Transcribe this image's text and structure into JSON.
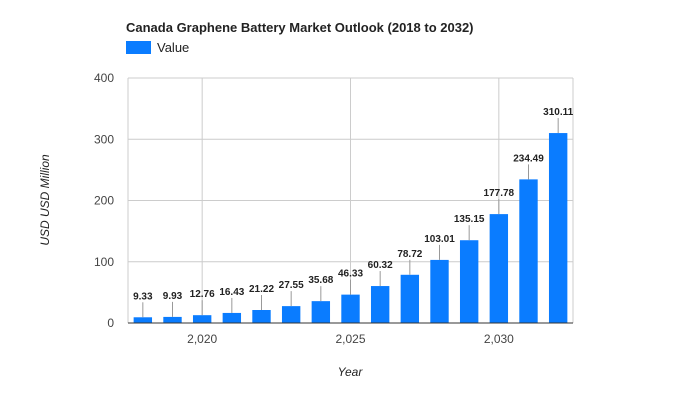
{
  "chart_data": {
    "type": "bar",
    "title": "Canada Graphene Battery Market Outlook (2018 to 2032)",
    "xlabel": "Year",
    "ylabel": "USD USD Million",
    "x": [
      2018,
      2019,
      2020,
      2021,
      2022,
      2023,
      2024,
      2025,
      2026,
      2027,
      2028,
      2029,
      2030,
      2031,
      2032
    ],
    "x_tick_values": [
      2020,
      2025,
      2030
    ],
    "x_tick_labels": [
      "2,020",
      "2,025",
      "2,030"
    ],
    "ylim": [
      0,
      400
    ],
    "y_ticks": [
      0,
      100,
      200,
      300,
      400
    ],
    "grid": true,
    "legend": {
      "position": "top-left",
      "entries": [
        "Value"
      ]
    },
    "series": [
      {
        "name": "Value",
        "color": "#0a7cff",
        "values": [
          9.33,
          9.93,
          12.76,
          16.43,
          21.22,
          27.55,
          35.68,
          46.33,
          60.32,
          78.72,
          103.01,
          135.15,
          177.78,
          234.49,
          310.11
        ],
        "labels": [
          "9.33",
          "9.93",
          "12.76",
          "16.43",
          "21.22",
          "27.55",
          "35.68",
          "46.33",
          "60.32",
          "78.72",
          "103.01",
          "135.15",
          "177.78",
          "234.49",
          "310.11"
        ]
      }
    ]
  }
}
